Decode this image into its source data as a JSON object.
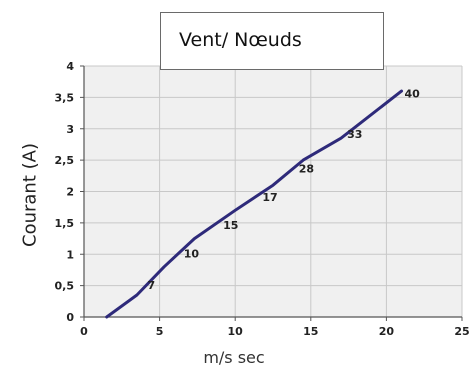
{
  "chart_data": {
    "type": "line",
    "title": "Vent/ Nœuds",
    "xlabel": "m/s sec",
    "ylabel": "Courant (A)",
    "xlim": [
      0,
      25
    ],
    "ylim": [
      0,
      4
    ],
    "x_ticks": [
      {
        "value": 0,
        "label": "0"
      },
      {
        "value": 5,
        "label": "5"
      },
      {
        "value": 10,
        "label": "10"
      },
      {
        "value": 15,
        "label": "15"
      },
      {
        "value": 20,
        "label": "20"
      },
      {
        "value": 25,
        "label": "25"
      }
    ],
    "y_ticks": [
      {
        "value": 0,
        "label": "0"
      },
      {
        "value": 0.5,
        "label": "0,5"
      },
      {
        "value": 1,
        "label": "1"
      },
      {
        "value": 1.5,
        "label": "1,5"
      },
      {
        "value": 2,
        "label": "2"
      },
      {
        "value": 2.5,
        "label": "2,5"
      },
      {
        "value": 3,
        "label": "3"
      },
      {
        "value": 3.5,
        "label": "3,5"
      },
      {
        "value": 4,
        "label": "4"
      }
    ],
    "grid": true,
    "legend": "none",
    "series": [
      {
        "color": "#2e2a7a",
        "points": [
          {
            "x": 1.5,
            "y": 0
          },
          {
            "x": 3.5,
            "y": 0.35
          },
          {
            "x": 5.3,
            "y": 0.8
          },
          {
            "x": 7.3,
            "y": 1.25
          },
          {
            "x": 10,
            "y": 1.7
          },
          {
            "x": 12.5,
            "y": 2.1
          },
          {
            "x": 14.5,
            "y": 2.5
          },
          {
            "x": 17,
            "y": 2.85
          },
          {
            "x": 21,
            "y": 3.6
          }
        ]
      }
    ],
    "annotations": [
      {
        "x": 4.2,
        "y": 0.45,
        "label": "7"
      },
      {
        "x": 6.6,
        "y": 0.95,
        "label": "10"
      },
      {
        "x": 9.2,
        "y": 1.4,
        "label": "15"
      },
      {
        "x": 11.8,
        "y": 1.85,
        "label": "17"
      },
      {
        "x": 14.2,
        "y": 2.3,
        "label": "28"
      },
      {
        "x": 17.4,
        "y": 2.85,
        "label": "33"
      },
      {
        "x": 21.2,
        "y": 3.5,
        "label": "40"
      }
    ],
    "colors": {
      "plot_background": "#f0f0f0",
      "grid": "#c8c8c8",
      "axis": "#555555",
      "line": "#2e2a7a"
    }
  }
}
